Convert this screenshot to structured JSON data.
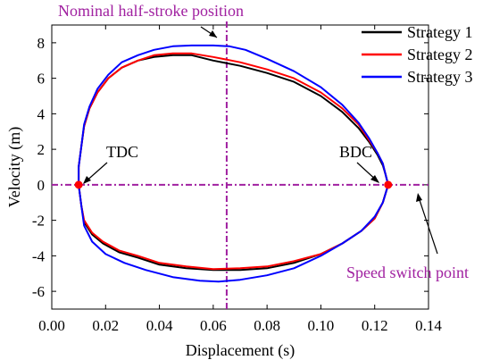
{
  "chart_data": {
    "type": "line",
    "xlabel": "Displacement (s)",
    "ylabel": "Velocity (m)",
    "xlim": [
      0.0,
      0.14
    ],
    "ylim": [
      -7,
      9
    ],
    "xticks": [
      "0.00",
      "0.02",
      "0.04",
      "0.06",
      "0.08",
      "0.10",
      "0.12",
      "0.14"
    ],
    "yticks": [
      "-6",
      "-4",
      "-2",
      "0",
      "2",
      "4",
      "6",
      "8"
    ],
    "legend_position": "top-right",
    "colors": {
      "Strategy 1": "#000000",
      "Strategy 2": "#ff0000",
      "Strategy 3": "#0000ff",
      "annotation": "#a020a0"
    },
    "series": [
      {
        "name": "Strategy 1",
        "color": "#000000",
        "x": [
          0.01,
          0.01,
          0.011,
          0.012,
          0.014,
          0.017,
          0.021,
          0.026,
          0.032,
          0.038,
          0.045,
          0.052,
          0.06,
          0.07,
          0.08,
          0.09,
          0.1,
          0.108,
          0.114,
          0.118,
          0.121,
          0.123,
          0.124,
          0.1245,
          0.125,
          0.123,
          0.12,
          0.115,
          0.108,
          0.1,
          0.09,
          0.08,
          0.07,
          0.06,
          0.05,
          0.04,
          0.032,
          0.025,
          0.019,
          0.015,
          0.012,
          0.011,
          0.01
        ],
        "y": [
          0.0,
          1.0,
          2.2,
          3.3,
          4.3,
          5.2,
          6.0,
          6.6,
          7.0,
          7.2,
          7.3,
          7.3,
          7.0,
          6.7,
          6.3,
          5.8,
          5.0,
          4.1,
          3.2,
          2.4,
          1.7,
          1.1,
          0.6,
          0.3,
          0.0,
          -1.0,
          -1.9,
          -2.6,
          -3.3,
          -3.9,
          -4.4,
          -4.7,
          -4.8,
          -4.8,
          -4.7,
          -4.5,
          -4.1,
          -3.8,
          -3.3,
          -2.8,
          -2.1,
          -1.2,
          0.0
        ]
      },
      {
        "name": "Strategy 2",
        "color": "#ff0000",
        "x": [
          0.01,
          0.01,
          0.011,
          0.012,
          0.014,
          0.017,
          0.021,
          0.026,
          0.032,
          0.038,
          0.045,
          0.052,
          0.06,
          0.07,
          0.08,
          0.09,
          0.1,
          0.108,
          0.114,
          0.118,
          0.121,
          0.123,
          0.124,
          0.1245,
          0.125,
          0.123,
          0.12,
          0.115,
          0.108,
          0.1,
          0.09,
          0.08,
          0.07,
          0.06,
          0.05,
          0.04,
          0.032,
          0.025,
          0.019,
          0.015,
          0.012,
          0.011,
          0.01
        ],
        "y": [
          0.0,
          1.0,
          2.2,
          3.3,
          4.3,
          5.2,
          6.0,
          6.6,
          7.0,
          7.3,
          7.4,
          7.4,
          7.2,
          6.9,
          6.5,
          6.0,
          5.2,
          4.3,
          3.4,
          2.5,
          1.8,
          1.2,
          0.6,
          0.3,
          0.0,
          -1.0,
          -1.9,
          -2.6,
          -3.3,
          -3.9,
          -4.3,
          -4.6,
          -4.7,
          -4.75,
          -4.6,
          -4.4,
          -4.0,
          -3.7,
          -3.2,
          -2.7,
          -2.0,
          -1.2,
          0.0
        ]
      },
      {
        "name": "Strategy 3",
        "color": "#0000ff",
        "x": [
          0.01,
          0.01,
          0.011,
          0.012,
          0.014,
          0.017,
          0.021,
          0.026,
          0.032,
          0.038,
          0.045,
          0.052,
          0.06,
          0.066,
          0.072,
          0.08,
          0.09,
          0.1,
          0.108,
          0.114,
          0.118,
          0.121,
          0.123,
          0.124,
          0.1245,
          0.125,
          0.123,
          0.12,
          0.115,
          0.108,
          0.1,
          0.09,
          0.08,
          0.07,
          0.062,
          0.055,
          0.045,
          0.035,
          0.027,
          0.02,
          0.015,
          0.012,
          0.011,
          0.01
        ],
        "y": [
          0.0,
          1.0,
          2.2,
          3.4,
          4.4,
          5.4,
          6.2,
          6.9,
          7.3,
          7.6,
          7.8,
          7.85,
          7.85,
          7.8,
          7.6,
          7.1,
          6.4,
          5.5,
          4.5,
          3.5,
          2.6,
          1.8,
          1.2,
          0.6,
          0.3,
          0.0,
          -1.0,
          -1.8,
          -2.6,
          -3.3,
          -4.0,
          -4.7,
          -5.1,
          -5.35,
          -5.45,
          -5.4,
          -5.2,
          -4.8,
          -4.4,
          -3.9,
          -3.2,
          -2.3,
          -1.2,
          0.0
        ]
      }
    ],
    "annotations": {
      "half_stroke_x": 0.065,
      "half_stroke_label": "Nominal half-stroke position",
      "speed_switch_label": "Speed switch point",
      "tdc_label": "TDC",
      "bdc_label": "BDC",
      "tdc_point": [
        0.01,
        0
      ],
      "bdc_point": [
        0.125,
        0
      ]
    }
  }
}
